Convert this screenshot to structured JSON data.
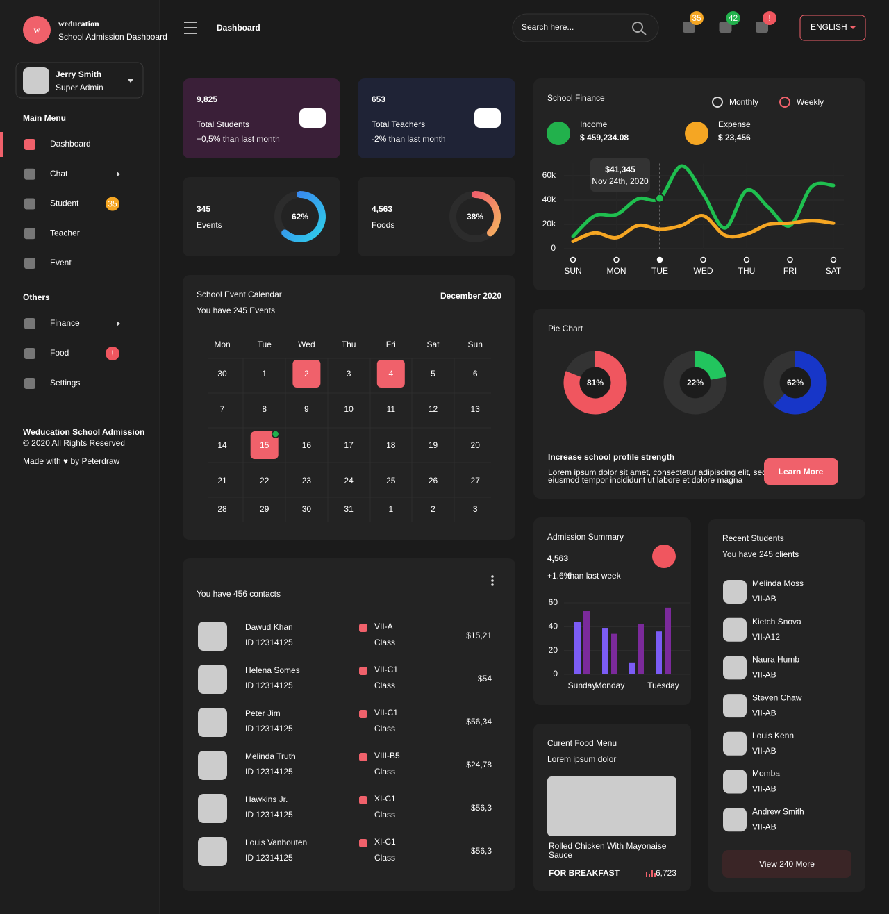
{
  "sidebar": {
    "logo": "w",
    "brand": "weducation",
    "brand_subtitle": "School Admission Dashboard",
    "user": {
      "name": "Jerry Smith",
      "role": "Super Admin"
    },
    "main_menu": {
      "title": "Main Menu",
      "items": [
        {
          "label": "Dashboard",
          "active": true
        },
        {
          "label": "Chat",
          "submenu": true
        },
        {
          "label": "Student",
          "badge": "35",
          "badge_color": "#f5a623"
        },
        {
          "label": "Teacher"
        },
        {
          "label": "Event"
        }
      ]
    },
    "others": {
      "title": "Others",
      "items": [
        {
          "label": "Finance",
          "submenu": true
        },
        {
          "label": "Food",
          "badge": "!",
          "badge_color": "#f0565f"
        },
        {
          "label": "Settings"
        }
      ]
    },
    "footer": {
      "title": "Weducation School Admission",
      "copyright": "© 2020 All Rights Reserved",
      "credit": "Made with ♥ by Peterdraw"
    }
  },
  "header": {
    "title": "Dashboard",
    "search_placeholder": "Search here...",
    "notifications": [
      {
        "badge": "35",
        "color": "#f5a623"
      },
      {
        "badge": "42",
        "color": "#22b14c"
      },
      {
        "badge": "!",
        "color": "#f0565f"
      }
    ],
    "language": "ENGLISH"
  },
  "stats": [
    {
      "value": "9,825",
      "label": "Total Students",
      "note": "+0,5% than last month",
      "color": "#3a1f38"
    },
    {
      "value": "653",
      "label": "Total Teachers",
      "note": "-2% than last month",
      "color": "#1f2336"
    }
  ],
  "progress": [
    {
      "value": "345",
      "label": "Events",
      "percent": 62,
      "percent_label": "62%",
      "colors": [
        "#3a7bf0",
        "#2fd0e8"
      ]
    },
    {
      "value": "4,563",
      "label": "Foods",
      "percent": 38,
      "percent_label": "38%",
      "colors": [
        "#f0616b",
        "#f5b060"
      ]
    }
  ],
  "finance": {
    "title": "School Finance",
    "periods": [
      {
        "label": "Monthly",
        "selected": false
      },
      {
        "label": "Weekly",
        "selected": true
      }
    ],
    "income": {
      "label": "Income",
      "value": "$ 459,234.08"
    },
    "expense": {
      "label": "Expense",
      "value": "$ 23,456"
    },
    "chart": {
      "type": "line",
      "x": [
        0,
        0.5,
        1,
        1.5,
        2,
        2.5,
        3,
        3.5,
        4,
        4.5,
        5,
        5.5,
        6
      ],
      "series": [
        {
          "name": "Income",
          "color": "#1fbf4f",
          "values": [
            10000,
            27000,
            28000,
            41000,
            41345,
            68000,
            45000,
            17000,
            48000,
            34000,
            19000,
            51000,
            52000
          ]
        },
        {
          "name": "Expense",
          "color": "#f5a623",
          "values": [
            6000,
            13000,
            9000,
            19000,
            16000,
            19000,
            27000,
            11000,
            12000,
            20000,
            21000,
            23000,
            21000
          ]
        }
      ],
      "xlim": [
        0,
        6
      ],
      "xticks": [
        {
          "value": 0,
          "label": "SUN"
        },
        {
          "value": 1,
          "label": "MON"
        },
        {
          "value": 2,
          "label": "TUE"
        },
        {
          "value": 3,
          "label": "WED"
        },
        {
          "value": 4,
          "label": "THU"
        },
        {
          "value": 5,
          "label": "FRI"
        },
        {
          "value": 6,
          "label": "SAT"
        }
      ],
      "ylim": [
        0,
        70000
      ],
      "yticks": [
        0,
        {
          "value": 20000,
          "label": "20k"
        },
        {
          "value": 40000,
          "label": "40k"
        },
        {
          "value": 60000,
          "label": "60k"
        }
      ],
      "tooltip": {
        "x": 2,
        "label": "$41,345",
        "date": "Nov 24th, 2020"
      }
    }
  },
  "calendar": {
    "title": "School Event Calendar",
    "subtitle": "You have 245 Events",
    "month": "December 2020",
    "weekdays": [
      "Mon",
      "Tue",
      "Wed",
      "Thu",
      "Fri",
      "Sat",
      "Sun"
    ],
    "days": [
      {
        "day": 30
      },
      {
        "day": 1
      },
      {
        "day": 2,
        "event": true
      },
      {
        "day": 3
      },
      {
        "day": 4,
        "event": true
      },
      {
        "day": 5
      },
      {
        "day": 6
      },
      {
        "day": 7
      },
      {
        "day": 8
      },
      {
        "day": 9
      },
      {
        "day": 10
      },
      {
        "day": 11
      },
      {
        "day": 12
      },
      {
        "day": 13
      },
      {
        "day": 14
      },
      {
        "day": 15,
        "event": true,
        "today": true
      },
      {
        "day": 16
      },
      {
        "day": 17
      },
      {
        "day": 18
      },
      {
        "day": 19
      },
      {
        "day": 20
      },
      {
        "day": 21
      },
      {
        "day": 22
      },
      {
        "day": 23
      },
      {
        "day": 24
      },
      {
        "day": 25
      },
      {
        "day": 26
      },
      {
        "day": 27
      },
      {
        "day": 28
      },
      {
        "day": 29
      },
      {
        "day": 30
      },
      {
        "day": 31
      },
      {
        "day": 1
      },
      {
        "day": 2
      },
      {
        "day": 3
      }
    ]
  },
  "contacts": {
    "subtitle": "You have 456 contacts",
    "class_label": "Class",
    "items": [
      {
        "name": "Dawud Khan",
        "id": "ID 12314125",
        "class": "VII-A",
        "amount": "$15,21"
      },
      {
        "name": "Helena Somes",
        "id": "ID 12314125",
        "class": "VII-C1",
        "amount": "$54"
      },
      {
        "name": "Peter Jim",
        "id": "ID 12314125",
        "class": "VII-C1",
        "amount": "$56,34"
      },
      {
        "name": "Melinda Truth",
        "id": "ID 12314125",
        "class": "VIII-B5",
        "amount": "$24,78"
      },
      {
        "name": "Hawkins Jr.",
        "id": "ID 12314125",
        "class": "XI-C1",
        "amount": "$56,3"
      },
      {
        "name": "Louis Vanhouten",
        "id": "ID 12314125",
        "class": "XI-C1",
        "amount": "$56,3"
      }
    ]
  },
  "pie": {
    "title": "Pie Chart",
    "charts": [
      {
        "type": "pie",
        "value": 81,
        "value_label": "81%",
        "color": "#f0565f"
      },
      {
        "type": "pie",
        "value": 22,
        "value_label": "22%",
        "color": "#22c55e"
      },
      {
        "type": "pie",
        "value": 62,
        "value_label": "62%",
        "color": "#1736c8"
      }
    ],
    "heading": "Increase school profile strength",
    "text": [
      "Lorem ipsum dolor sit amet, consectetur adipiscing elit, sed do",
      "eiusmod tempor incididunt ut labore et dolore magna"
    ],
    "button": "Learn More"
  },
  "admission": {
    "title": "Admission Summary",
    "value": "4,563",
    "change": "+1.6%",
    "change_note": "than last week",
    "chart": {
      "type": "bar",
      "categories": [
        "Sunday",
        "Monday",
        null,
        "Tuesday"
      ],
      "series": [
        {
          "color": "#7b5cf5",
          "values": [
            44,
            39,
            10,
            36
          ]
        },
        {
          "color": "#7b2a9b",
          "values": [
            53,
            34,
            42,
            56
          ]
        }
      ],
      "ylim": [
        0,
        65
      ],
      "yticks": [
        0,
        20,
        40,
        60
      ]
    }
  },
  "food_menu": {
    "title": "Curent Food Menu",
    "subtitle": "Lorem ipsum dolor",
    "dish": [
      "Rolled Chicken With Mayonaise",
      "Sauce"
    ],
    "meal": "FOR BREAKFAST",
    "count": "6,723"
  },
  "recent_students": {
    "title": "Recent Students",
    "subtitle": "You have 245 clients",
    "items": [
      {
        "name": "Melinda Moss",
        "class": "VII-AB"
      },
      {
        "name": "Kietch Snova",
        "class": "VII-A12"
      },
      {
        "name": "Naura Humb",
        "class": "VII-AB"
      },
      {
        "name": "Steven Chaw",
        "class": "VII-AB"
      },
      {
        "name": "Louis Kenn",
        "class": "VII-AB"
      },
      {
        "name": "Momba",
        "class": "VII-AB"
      },
      {
        "name": "Andrew Smith",
        "class": "VII-AB"
      }
    ],
    "button": "View 240 More"
  }
}
